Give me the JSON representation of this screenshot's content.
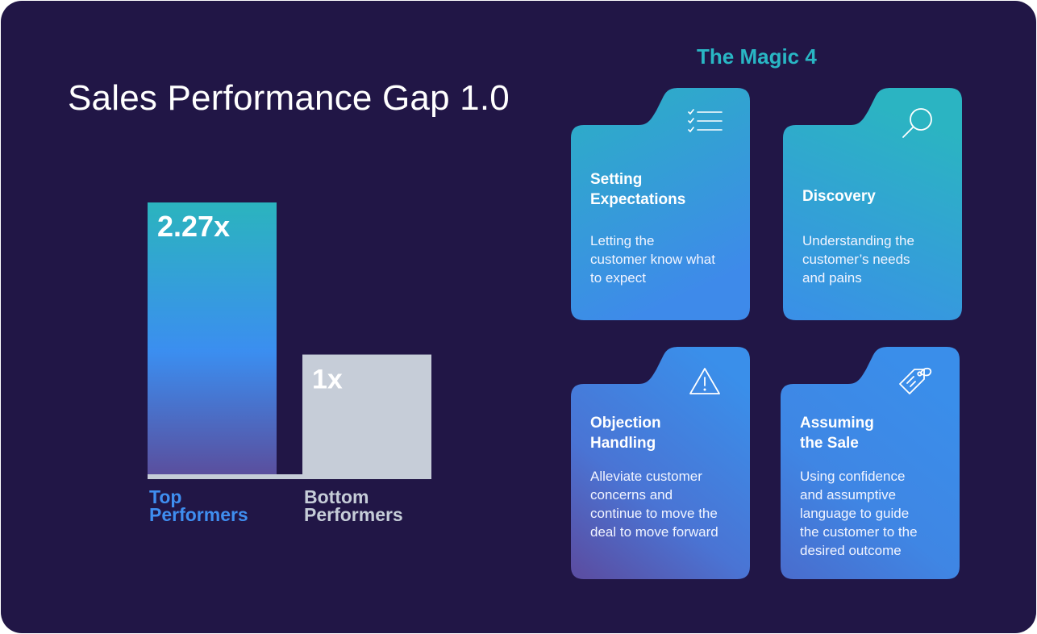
{
  "title": "Sales Performance Gap 1.0",
  "chart_data": {
    "type": "bar",
    "title": "Sales Performance Gap 1.0",
    "categories": [
      "Top Performers",
      "Bottom Performers"
    ],
    "category_lines": [
      [
        "Top",
        "Performers"
      ],
      [
        "Bottom",
        "Performers"
      ]
    ],
    "values": [
      2.27,
      1
    ],
    "value_labels": [
      "2.27x",
      "1x"
    ],
    "ylim": [
      0,
      2.27
    ],
    "grid": false,
    "colors": {
      "top_gradient": [
        "#2bb4be",
        "#3b8ef0",
        "#5a4f9e"
      ],
      "bottom": "#c6cdd8",
      "top_label": "#3f8ef0",
      "bottom_label": "#c6cdd8",
      "baseline": "#c6cdd8"
    }
  },
  "magic": {
    "title": "The Magic 4",
    "cards": [
      {
        "title_lines": [
          "Setting",
          "Expectations"
        ],
        "description_lines": [
          "Letting the",
          "customer know what",
          "to expect"
        ],
        "icon": "checklist-icon"
      },
      {
        "title_lines": [
          "Discovery"
        ],
        "description_lines": [
          "Understanding the",
          "customer’s needs",
          "and pains"
        ],
        "icon": "magnifier-icon"
      },
      {
        "title_lines": [
          "Objection",
          "Handling"
        ],
        "description_lines": [
          "Alleviate customer",
          "concerns and",
          "continue to move the",
          "deal to move forward"
        ],
        "icon": "warning-icon"
      },
      {
        "title_lines": [
          "Assuming",
          "the Sale"
        ],
        "description_lines": [
          "Using confidence",
          "and assumptive",
          "language to guide",
          "the customer to the",
          "desired outcome"
        ],
        "icon": "price-tag-icon"
      }
    ]
  }
}
